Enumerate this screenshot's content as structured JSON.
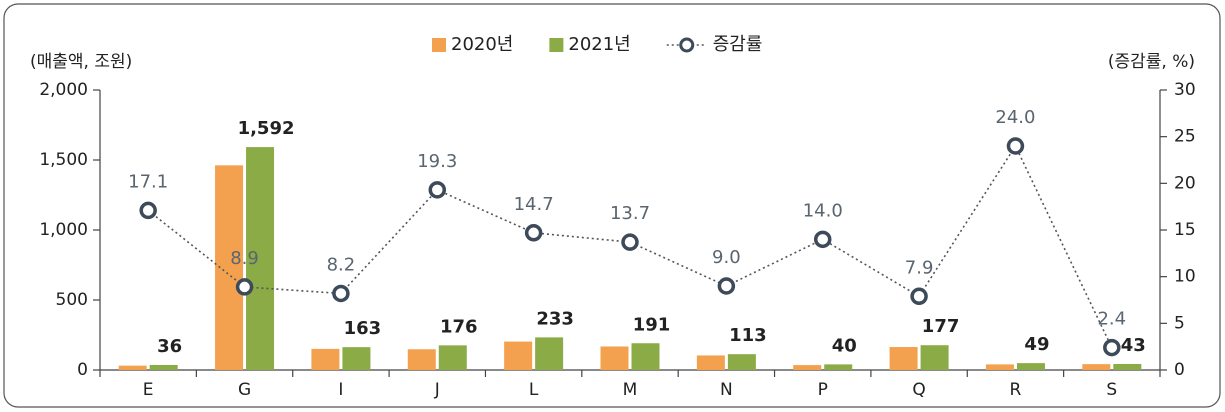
{
  "chart_data": {
    "type": "bar",
    "y_label": "(매출액, 조원)",
    "y2_label": "(증감률, %)",
    "categories": [
      "E",
      "G",
      "I",
      "J",
      "L",
      "M",
      "N",
      "P",
      "Q",
      "R",
      "S"
    ],
    "series": [
      {
        "name": "2020년",
        "color": "#f4a14f",
        "values": [
          31,
          1462,
          151,
          148,
          203,
          168,
          104,
          35,
          164,
          40,
          42
        ]
      },
      {
        "name": "2021년",
        "color": "#8aab45",
        "values": [
          36,
          1592,
          163,
          176,
          233,
          191,
          113,
          40,
          177,
          49,
          43
        ],
        "value_labels": [
          "36",
          "1,592",
          "163",
          "176",
          "233",
          "191",
          "113",
          "40",
          "177",
          "49",
          "43"
        ]
      },
      {
        "name": "증감률",
        "color": "#3d4a5a",
        "type": "line",
        "axis": "y2",
        "values": [
          17.1,
          8.9,
          8.2,
          19.3,
          14.7,
          13.7,
          9.0,
          14.0,
          7.9,
          24.0,
          2.4
        ],
        "value_labels": [
          "17.1",
          "8.9",
          "8.2",
          "19.3",
          "14.7",
          "13.7",
          "9.0",
          "14.0",
          "7.9",
          "24.0",
          "2.4"
        ]
      }
    ],
    "ylim": [
      0,
      2000
    ],
    "yticks": [
      0,
      500,
      {
        "value": 1000,
        "label": "1,000"
      },
      {
        "value": 1500,
        "label": "1,500"
      },
      {
        "value": 2000,
        "label": "2,000"
      }
    ],
    "y2lim": [
      0,
      30
    ],
    "y2ticks": [
      0,
      5,
      10,
      15,
      20,
      25,
      30
    ]
  }
}
